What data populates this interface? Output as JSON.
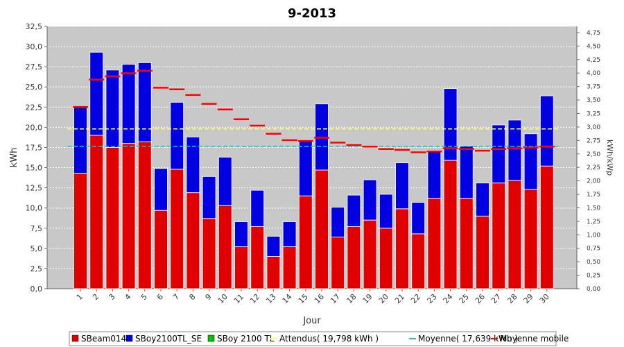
{
  "chart_data": {
    "type": "bar",
    "title": "9-2013",
    "x_label": "Jour",
    "y_label": "kWh",
    "y2_label": "kWh/kWp",
    "categories": [
      "1",
      "2",
      "3",
      "4",
      "5",
      "6",
      "7",
      "8",
      "9",
      "10",
      "11",
      "12",
      "13",
      "14",
      "15",
      "16",
      "17",
      "18",
      "19",
      "20",
      "21",
      "22",
      "23",
      "24",
      "25",
      "26",
      "27",
      "28",
      "29",
      "30"
    ],
    "series": [
      {
        "name": "SBeam014",
        "color": "#e00000",
        "values": [
          14.3,
          19.0,
          17.5,
          18.0,
          18.2,
          9.7,
          14.8,
          11.9,
          8.7,
          10.3,
          5.2,
          7.7,
          4.0,
          5.2,
          11.5,
          14.7,
          6.4,
          7.7,
          8.5,
          7.5,
          9.9,
          6.8,
          11.2,
          15.9,
          11.2,
          9.0,
          13.1,
          13.4,
          12.3,
          15.2
        ]
      },
      {
        "name": "SBoy2100TL_SE",
        "color": "#0000e0",
        "values": [
          8.2,
          10.3,
          9.6,
          9.8,
          9.8,
          5.2,
          8.3,
          6.9,
          5.2,
          6.0,
          3.1,
          4.5,
          2.5,
          3.1,
          6.8,
          8.2,
          3.7,
          3.9,
          5.0,
          4.2,
          5.7,
          3.9,
          5.9,
          8.9,
          6.5,
          4.1,
          7.2,
          7.5,
          6.9,
          8.7
        ]
      },
      {
        "name": "SBoy 2100 TL",
        "color": "#00c000",
        "values": [
          0,
          0,
          0,
          0,
          0,
          0,
          0,
          0,
          0,
          0,
          0,
          0,
          0,
          0,
          0,
          0,
          0,
          0,
          0,
          0,
          0,
          0,
          0,
          0,
          0,
          0,
          0,
          0,
          0,
          0
        ]
      },
      {
        "name": "Attendus( 19,798 kWh )",
        "color": "#ffff60",
        "type": "hline",
        "value": 19.798
      },
      {
        "name": "Moyenne( 17,639 kWh )",
        "color": "#20c0c0",
        "type": "hline",
        "value": 17.639
      },
      {
        "name": "Moyenne mobile",
        "color": "#ff0000",
        "type": "step",
        "values": [
          22.5,
          25.9,
          26.3,
          26.7,
          27.0,
          24.9,
          24.7,
          24.0,
          22.9,
          22.2,
          21.0,
          20.2,
          19.2,
          18.4,
          18.3,
          18.7,
          18.1,
          17.8,
          17.6,
          17.3,
          17.2,
          16.9,
          17.0,
          17.4,
          17.3,
          17.1,
          17.3,
          17.4,
          17.5,
          17.6
        ]
      }
    ],
    "ylim": [
      0,
      32.5
    ],
    "yticks": [
      {
        "value": 0,
        "label": "0,0"
      },
      {
        "value": 2.5,
        "label": "2,5"
      },
      {
        "value": 5,
        "label": "5,0"
      },
      {
        "value": 7.5,
        "label": "7,5"
      },
      {
        "value": 10,
        "label": "10,0"
      },
      {
        "value": 12.5,
        "label": "12,5"
      },
      {
        "value": 15,
        "label": "15,0"
      },
      {
        "value": 17.5,
        "label": "17,5"
      },
      {
        "value": 20,
        "label": "20,0"
      },
      {
        "value": 22.5,
        "label": "22,5"
      },
      {
        "value": 25,
        "label": "25,0"
      },
      {
        "value": 27.5,
        "label": "27,5"
      },
      {
        "value": 30,
        "label": "30,0"
      },
      {
        "value": 32.5,
        "label": "32,5"
      }
    ],
    "y2lim": [
      0,
      4.865
    ],
    "y2ticks": [
      {
        "value": 0,
        "label": "0,00"
      },
      {
        "value": 0.25,
        "label": "0,25"
      },
      {
        "value": 0.5,
        "label": "0,50"
      },
      {
        "value": 0.75,
        "label": "0,75"
      },
      {
        "value": 1,
        "label": "1,00"
      },
      {
        "value": 1.25,
        "label": "1,25"
      },
      {
        "value": 1.5,
        "label": "1,50"
      },
      {
        "value": 1.75,
        "label": "1,75"
      },
      {
        "value": 2,
        "label": "2,00"
      },
      {
        "value": 2.25,
        "label": "2,25"
      },
      {
        "value": 2.5,
        "label": "2,50"
      },
      {
        "value": 2.75,
        "label": "2,75"
      },
      {
        "value": 3,
        "label": "3,00"
      },
      {
        "value": 3.25,
        "label": "3,25"
      },
      {
        "value": 3.5,
        "label": "3,50"
      },
      {
        "value": 3.75,
        "label": "3,75"
      },
      {
        "value": 4,
        "label": "4,00"
      },
      {
        "value": 4.25,
        "label": "4,25"
      },
      {
        "value": 4.5,
        "label": "4,50"
      },
      {
        "value": 4.75,
        "label": "4,75"
      }
    ],
    "grid": true
  }
}
